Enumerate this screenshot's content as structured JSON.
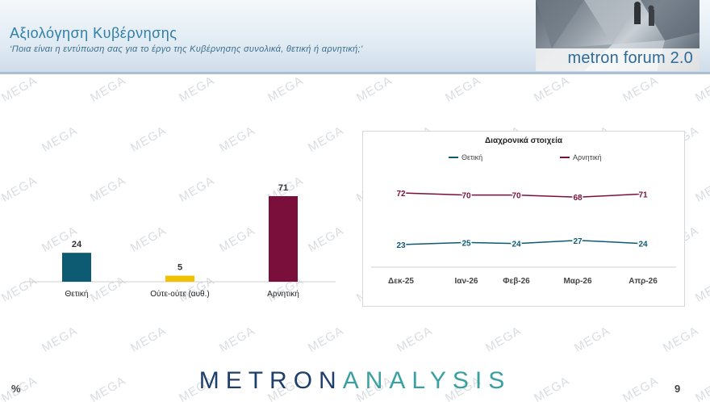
{
  "header": {
    "title": "Αξιολόγηση Κυβέρνησης",
    "subtitle": "‘Ποια είναι η εντύπωση σας για το έργο της Κυβέρνησης συνολικά, θετική ή αρνητική;’",
    "logo_text": "metron forum 2.0"
  },
  "watermark": "MEGA",
  "footer": {
    "logo_part1": "METRON",
    "logo_part2": "ANALYSIS",
    "unit_symbol": "%",
    "page_number": "9"
  },
  "colors": {
    "positive": "#0d5a73",
    "neutral": "#f2c200",
    "negative": "#7a0f3c",
    "title": "#2f7fa8"
  },
  "chart_data": [
    {
      "type": "bar",
      "categories": [
        "Θετική",
        "Ούτε-ούτε (αυθ.)",
        "Αρνητική"
      ],
      "values": [
        24,
        5,
        71
      ],
      "ylim": [
        0,
        80
      ]
    },
    {
      "type": "line",
      "title": "Διαχρονικά στοιχεία",
      "x": [
        "Δεκ-25",
        "Ιαν-26",
        "Φεβ-26",
        "Μαρ-26",
        "Απρ-26"
      ],
      "series": [
        {
          "name": "Θετική",
          "values": [
            23,
            25,
            24,
            27,
            24
          ]
        },
        {
          "name": "Αρνητική",
          "values": [
            72,
            70,
            70,
            68,
            71
          ]
        }
      ],
      "ylim": [
        0,
        100
      ],
      "legend": "top"
    }
  ]
}
